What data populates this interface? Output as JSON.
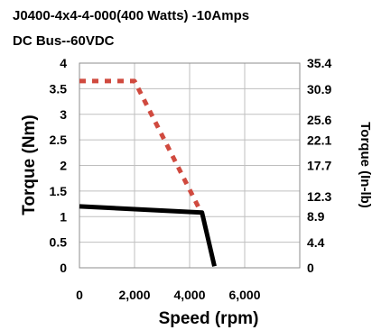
{
  "chart_data": {
    "type": "line",
    "title": "J0400-4x4-4-000(400 Watts)  -10Amps",
    "subtitle": "DC Bus--60VDC",
    "xlabel": "Speed (rpm)",
    "ylabel": "Torque (Nm)",
    "y2label": "Torque (In-lb)",
    "xlim": [
      0,
      8000
    ],
    "ylim": [
      0,
      4
    ],
    "y2lim": [
      0,
      35.4
    ],
    "x_ticks": [
      0,
      2000,
      4000,
      6000
    ],
    "x_tick_labels": [
      "0",
      "2,000",
      "4,000",
      "6,000"
    ],
    "y_ticks": [
      0,
      0.5,
      1,
      1.5,
      2,
      2.5,
      3,
      3.5,
      4
    ],
    "y_tick_labels": [
      "0",
      "0.5",
      "1",
      "1.5",
      "2",
      "2.5",
      "3",
      "3.5",
      "4"
    ],
    "y2_ticks": [
      0,
      4.4,
      8.9,
      12.3,
      17.7,
      22.1,
      25.6,
      30.9,
      35.4
    ],
    "y2_tick_labels": [
      "0",
      "4.4",
      "8.9",
      "12.3",
      "17.7",
      "22.1",
      "25.6",
      "30.9",
      "35.4"
    ],
    "grid": true,
    "series": [
      {
        "style": "dotted",
        "color": "#d04a3f",
        "x": [
          0,
          2000,
          4450
        ],
        "y": [
          3.65,
          3.65,
          1.05
        ]
      },
      {
        "style": "solid",
        "color": "#000000",
        "x": [
          0,
          4450,
          4900
        ],
        "y": [
          1.2,
          1.08,
          0.03
        ]
      }
    ]
  }
}
